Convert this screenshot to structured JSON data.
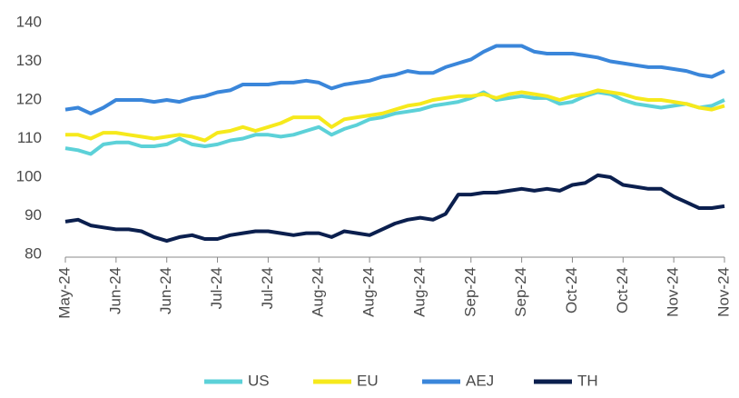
{
  "chart_data": {
    "type": "line",
    "categories": [
      "May-24",
      null,
      null,
      null,
      "Jun-24",
      null,
      null,
      null,
      "Jun-24",
      null,
      null,
      null,
      "Jul-24",
      null,
      null,
      null,
      "Jul-24",
      null,
      null,
      null,
      "Aug-24",
      null,
      null,
      null,
      "Aug-24",
      null,
      null,
      null,
      "Aug-24",
      null,
      null,
      null,
      "Sep-24",
      null,
      null,
      null,
      "Sep-24",
      null,
      null,
      null,
      "Oct-24",
      null,
      null,
      null,
      "Oct-24",
      null,
      null,
      null,
      "Nov-24",
      null,
      null,
      null,
      "Nov-24"
    ],
    "series": [
      {
        "name": "US",
        "color": "#5cd1d8",
        "values": [
          107.5,
          107,
          106,
          108.5,
          109,
          109,
          108,
          108,
          108.5,
          110,
          108.5,
          108,
          108.5,
          109.5,
          110,
          111,
          111,
          110.5,
          111,
          112,
          113,
          111,
          112.5,
          113.5,
          115,
          115.5,
          116.5,
          117,
          117.5,
          118.5,
          119,
          119.5,
          120.5,
          122,
          120,
          120.5,
          121,
          120.5,
          120.5,
          119,
          119.5,
          121,
          122,
          121.5,
          120,
          119,
          118.5,
          118,
          118.5,
          119,
          118,
          118.5,
          120
        ]
      },
      {
        "name": "EU",
        "color": "#f6e91c",
        "values": [
          111,
          111,
          110,
          111.5,
          111.5,
          111,
          110.5,
          110,
          110.5,
          111,
          110.5,
          109.5,
          111.5,
          112,
          113,
          112,
          113,
          114,
          115.5,
          115.5,
          115.5,
          113,
          115,
          115.5,
          116,
          116.5,
          117.5,
          118.5,
          119,
          120,
          120.5,
          121,
          121,
          121.5,
          120.5,
          121.5,
          122,
          121.5,
          121,
          120,
          121,
          121.5,
          122.5,
          122,
          121.5,
          120.5,
          120,
          120,
          119.5,
          119,
          118,
          117.5,
          118.5
        ]
      },
      {
        "name": "AEJ",
        "color": "#3a86da",
        "values": [
          117.5,
          118,
          116.5,
          118,
          120,
          120,
          120,
          119.5,
          120,
          119.5,
          120.5,
          121,
          122,
          122.5,
          124,
          124,
          124,
          124.5,
          124.5,
          125,
          124.5,
          123,
          124,
          124.5,
          125,
          126,
          126.5,
          127.5,
          127,
          127,
          128.5,
          129.5,
          130.5,
          132.5,
          134,
          134,
          134,
          132.5,
          132,
          132,
          132,
          131.5,
          131,
          130,
          129.5,
          129,
          128.5,
          128.5,
          128,
          127.5,
          126.5,
          126,
          127.5
        ]
      },
      {
        "name": "TH",
        "color": "#0b1f4e",
        "values": [
          88.5,
          89,
          87.5,
          87,
          86.5,
          86.5,
          86,
          84.5,
          83.5,
          84.5,
          85,
          84,
          84,
          85,
          85.5,
          86,
          86,
          85.5,
          85,
          85.5,
          85.5,
          84.5,
          86,
          85.5,
          85,
          86.5,
          88,
          89,
          89.5,
          89,
          90.5,
          95.5,
          95.5,
          96,
          96,
          96.5,
          97,
          96.5,
          97,
          96.5,
          98,
          98.5,
          100.5,
          100,
          98,
          97.5,
          97,
          97,
          95,
          93.5,
          92,
          92,
          92.5
        ]
      }
    ],
    "ylim": [
      80,
      140
    ],
    "yticks": [
      80,
      90,
      100,
      110,
      120,
      130,
      140
    ],
    "grid": false,
    "legend": "bottom"
  }
}
